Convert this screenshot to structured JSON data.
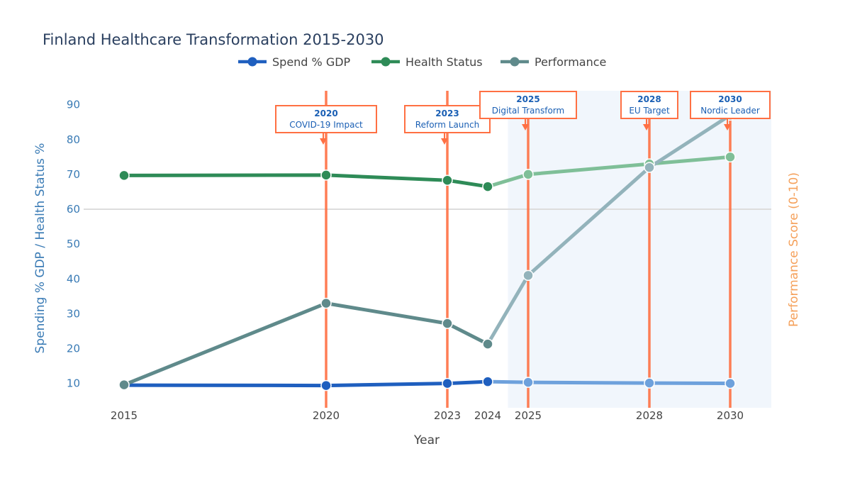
{
  "chart_data": {
    "type": "line",
    "title": "Finland Healthcare Transformation 2015-2030",
    "xlabel": "Year",
    "ylabel": "Spending % GDP / Health Status %",
    "y2label": "Performance Score (0-10)",
    "x": [
      2015,
      2020,
      2023,
      2024,
      2025,
      2028,
      2030
    ],
    "x_ticks": [
      "2015",
      "2020",
      "2023",
      "2024",
      "2025",
      "2028",
      "2030"
    ],
    "ylim": [
      3,
      94
    ],
    "yticks": [
      "10",
      "20",
      "30",
      "40",
      "50",
      "60",
      "70",
      "80",
      "90"
    ],
    "projection_start": 2024.5,
    "series": [
      {
        "name": "Spend % GDP",
        "color": "#1f5fbf",
        "projection_color": "#6ea1dc",
        "values": [
          9.5,
          9.4,
          10.0,
          10.5,
          10.3,
          10.1,
          10.0
        ]
      },
      {
        "name": "Health Status",
        "color": "#2e8b57",
        "projection_color": "#7fbf98",
        "values": [
          69.7,
          69.8,
          68.3,
          66.5,
          70.0,
          73.0,
          75.0
        ]
      },
      {
        "name": "Performance",
        "color": "#5f8a8b",
        "projection_color": "#93b3bb",
        "values": [
          9.6,
          33.0,
          27.2,
          21.3,
          41.0,
          72.0,
          87.0
        ]
      }
    ],
    "annotations": [
      {
        "x": 2020,
        "year": "2020",
        "label": "COVID-19 Impact"
      },
      {
        "x": 2023,
        "year": "2023",
        "label": "Reform Launch"
      },
      {
        "x": 2025,
        "year": "2025",
        "label": "Digital Transform"
      },
      {
        "x": 2028,
        "year": "2028",
        "label": "EU Target"
      },
      {
        "x": 2030,
        "year": "2030",
        "label": "Nordic Leader"
      }
    ],
    "legend_position": "top-center",
    "colors": {
      "event_line": "#ff7043",
      "grid": "#dddddd"
    }
  }
}
